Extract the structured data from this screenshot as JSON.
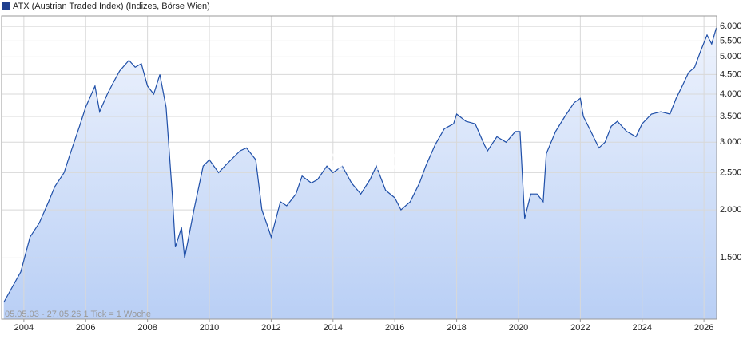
{
  "chart_data": {
    "type": "line",
    "log_scale": true,
    "grid": true,
    "annotation": "05.05.03 - 27.05.26   1 Tick = 1 Woche",
    "watermark": "ARIVA.DE",
    "xlim": [
      2003.28,
      2026.41
    ],
    "xticks": [
      2004,
      2006,
      2008,
      2010,
      2012,
      2014,
      2016,
      2018,
      2020,
      2022,
      2024,
      2026
    ],
    "ylim": [
      1040,
      6390
    ],
    "yticks": [
      {
        "value": 1500,
        "label": "1.500"
      },
      {
        "value": 2000,
        "label": "2.000"
      },
      {
        "value": 2500,
        "label": "2.500"
      },
      {
        "value": 3000,
        "label": "3.000"
      },
      {
        "value": 3500,
        "label": "3.500"
      },
      {
        "value": 4000,
        "label": "4.000"
      },
      {
        "value": 4500,
        "label": "4.500"
      },
      {
        "value": 5000,
        "label": "5.000"
      },
      {
        "value": 5500,
        "label": "5.500"
      },
      {
        "value": 6000,
        "label": "6.000"
      }
    ],
    "x": [
      2003.35,
      2003.6,
      2003.9,
      2004.2,
      2004.5,
      2004.8,
      2005.0,
      2005.3,
      2005.5,
      2005.8,
      2006.0,
      2006.3,
      2006.45,
      2006.7,
      2006.9,
      2007.1,
      2007.4,
      2007.6,
      2007.8,
      2008.0,
      2008.2,
      2008.4,
      2008.6,
      2008.8,
      2008.9,
      2009.1,
      2009.2,
      2009.5,
      2009.8,
      2010.0,
      2010.3,
      2010.5,
      2010.8,
      2011.0,
      2011.2,
      2011.5,
      2011.7,
      2011.9,
      2012.0,
      2012.3,
      2012.5,
      2012.8,
      2013.0,
      2013.3,
      2013.5,
      2013.8,
      2014.0,
      2014.3,
      2014.6,
      2014.9,
      2015.2,
      2015.4,
      2015.7,
      2016.0,
      2016.2,
      2016.5,
      2016.8,
      2017.0,
      2017.3,
      2017.6,
      2017.9,
      2018.0,
      2018.3,
      2018.6,
      2018.9,
      2019.0,
      2019.3,
      2019.6,
      2019.9,
      2020.05,
      2020.2,
      2020.4,
      2020.6,
      2020.8,
      2020.9,
      2021.2,
      2021.5,
      2021.8,
      2022.0,
      2022.1,
      2022.3,
      2022.6,
      2022.8,
      2023.0,
      2023.2,
      2023.5,
      2023.8,
      2024.0,
      2024.3,
      2024.6,
      2024.9,
      2025.1,
      2025.3,
      2025.5,
      2025.7,
      2025.9,
      2026.1,
      2026.25,
      2026.4
    ],
    "series": [
      {
        "name": "ATX (Austrian Traded Index) (Indizes, Börse Wien)",
        "color": "#1f4fa8",
        "values": [
          1150,
          1250,
          1380,
          1700,
          1850,
          2100,
          2300,
          2500,
          2800,
          3300,
          3700,
          4200,
          3600,
          4000,
          4300,
          4600,
          4900,
          4700,
          4800,
          4200,
          4000,
          4500,
          3700,
          2200,
          1600,
          1800,
          1500,
          2000,
          2600,
          2700,
          2500,
          2600,
          2750,
          2850,
          2900,
          2700,
          2000,
          1800,
          1700,
          2100,
          2050,
          2200,
          2450,
          2350,
          2400,
          2600,
          2500,
          2600,
          2350,
          2200,
          2400,
          2600,
          2250,
          2150,
          2000,
          2100,
          2350,
          2600,
          2950,
          3250,
          3350,
          3550,
          3400,
          3350,
          2950,
          2850,
          3100,
          3000,
          3200,
          3200,
          1900,
          2200,
          2200,
          2100,
          2800,
          3200,
          3500,
          3800,
          3900,
          3500,
          3250,
          2900,
          3000,
          3300,
          3400,
          3200,
          3100,
          3350,
          3550,
          3600,
          3550,
          3900,
          4200,
          4550,
          4700,
          5200,
          5700,
          5400,
          5950
        ]
      }
    ]
  }
}
